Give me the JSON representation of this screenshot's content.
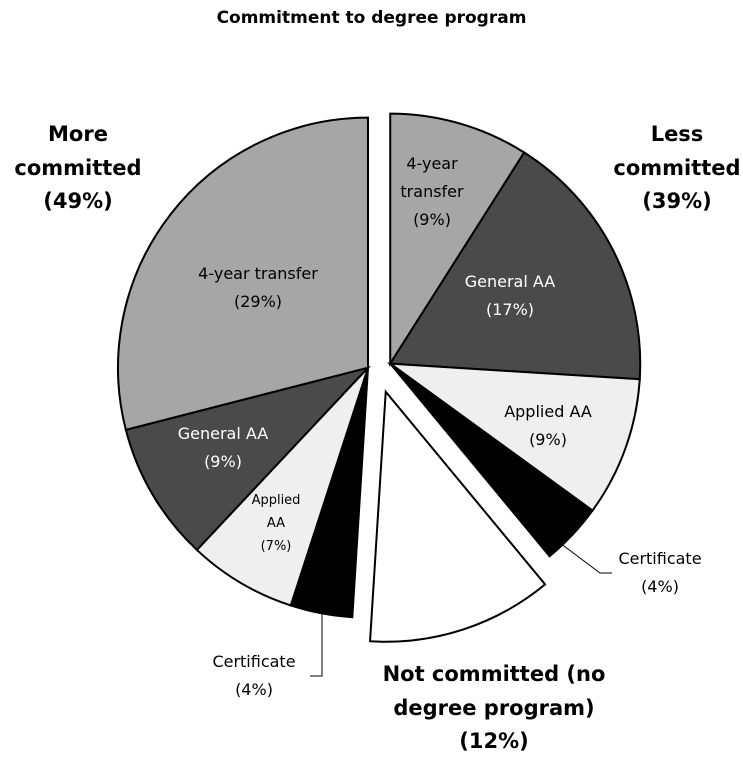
{
  "chart_data": {
    "type": "pie",
    "title": "Commitment to degree program",
    "series": [
      {
        "name": "Less committed",
        "value_label": "(39%)",
        "categories": [
          "4-year transfer",
          "General AA",
          "Applied AA",
          "Certificate"
        ],
        "values": [
          9,
          17,
          9,
          4
        ],
        "value_labels": [
          "(9%)",
          "(17%)",
          "(9%)",
          "(4%)"
        ],
        "colors": [
          "#a6a6a6",
          "#4a4a4a",
          "#efefef",
          "#000000"
        ]
      },
      {
        "name": "Not committed (no degree program)",
        "value_label": "(12%)",
        "categories": [
          null
        ],
        "values": [
          12
        ],
        "value_labels": [
          null
        ],
        "colors": [
          "#ffffff"
        ]
      },
      {
        "name": "More committed",
        "value_label": "(49%)",
        "categories": [
          "Certificate",
          "Applied AA",
          "General AA",
          "4-year transfer"
        ],
        "values": [
          4,
          7,
          9,
          29
        ],
        "value_labels": [
          "(4%)",
          "(7%)",
          "(9%)",
          "(29%)"
        ],
        "colors": [
          "#000000",
          "#efefef",
          "#4a4a4a",
          "#a6a6a6"
        ]
      }
    ]
  }
}
